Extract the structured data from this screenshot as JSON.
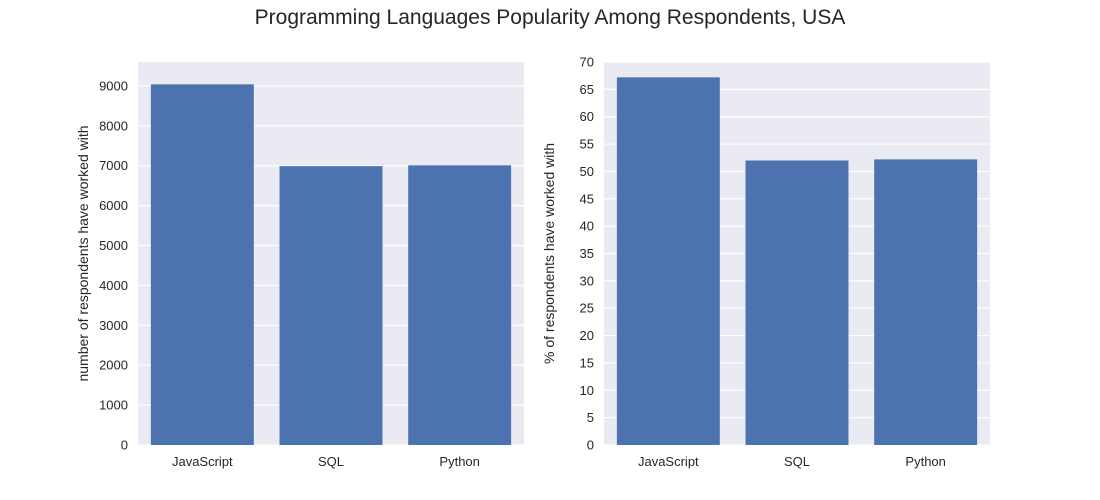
{
  "figure": {
    "title": "Programming Languages Popularity Among Respondents, USA"
  },
  "colors": {
    "bar": "#4c72b0",
    "axes_bg": "#eaeaf2",
    "grid": "#ffffff",
    "text": "#262626"
  },
  "chart_data": [
    {
      "type": "bar",
      "categories": [
        "JavaScript",
        "SQL",
        "Python"
      ],
      "values": [
        9040,
        6990,
        7010
      ],
      "xlabel": "",
      "ylabel": "number of respondents have worked with",
      "ylim": [
        0,
        9600
      ],
      "yticks": [
        0,
        1000,
        2000,
        3000,
        4000,
        5000,
        6000,
        7000,
        8000,
        9000
      ],
      "grid": true
    },
    {
      "type": "bar",
      "categories": [
        "JavaScript",
        "SQL",
        "Python"
      ],
      "values": [
        67.2,
        52.0,
        52.2
      ],
      "xlabel": "",
      "ylabel": "% of respondents have worked with",
      "ylim": [
        0,
        70
      ],
      "yticks": [
        0,
        5,
        10,
        15,
        20,
        25,
        30,
        35,
        40,
        45,
        50,
        55,
        60,
        65,
        70
      ],
      "grid": true
    }
  ]
}
